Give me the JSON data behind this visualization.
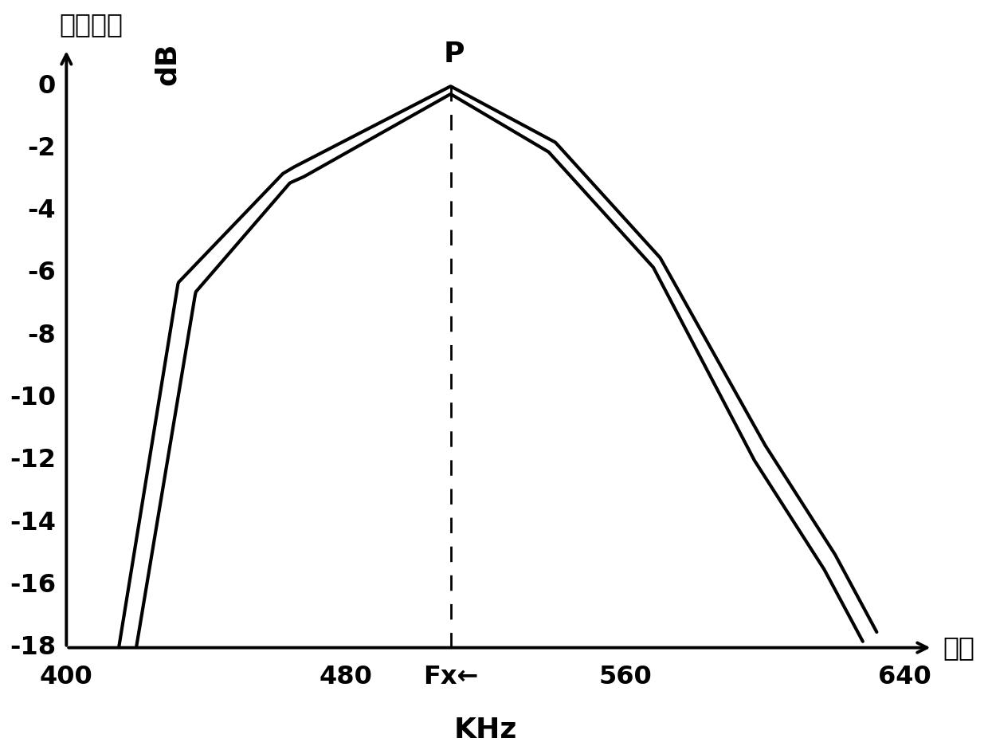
{
  "title": "",
  "xlabel_zh": "频率",
  "xlabel_unit": "KHz",
  "ylabel_zh": "信号幅値",
  "ylabel_db": "dB",
  "xlim": [
    400,
    655
  ],
  "ylim": [
    -18,
    1.8
  ],
  "xticks": [
    400,
    480,
    560,
    640
  ],
  "yticks": [
    0,
    -2,
    -4,
    -6,
    -8,
    -10,
    -12,
    -14,
    -16,
    -18
  ],
  "fx_x": 510,
  "fx_label": "Fx←",
  "peak_label": "P",
  "bg_color": "#ffffff",
  "line_color": "#000000",
  "curve1_x": [
    415,
    432,
    462,
    465,
    510,
    540,
    570,
    600,
    620,
    632
  ],
  "curve1_y": [
    -18.0,
    -6.3,
    -2.8,
    -2.6,
    0.0,
    -1.8,
    -5.5,
    -11.5,
    -15.0,
    -17.5
  ],
  "curve2_x": [
    420,
    437,
    464,
    468,
    510,
    538,
    568,
    597,
    617,
    628
  ],
  "curve2_y": [
    -18.0,
    -6.6,
    -3.1,
    -2.9,
    -0.25,
    -2.1,
    -5.8,
    -12.0,
    -15.5,
    -17.8
  ],
  "linewidth": 3.0,
  "axis_linewidth": 2.8
}
